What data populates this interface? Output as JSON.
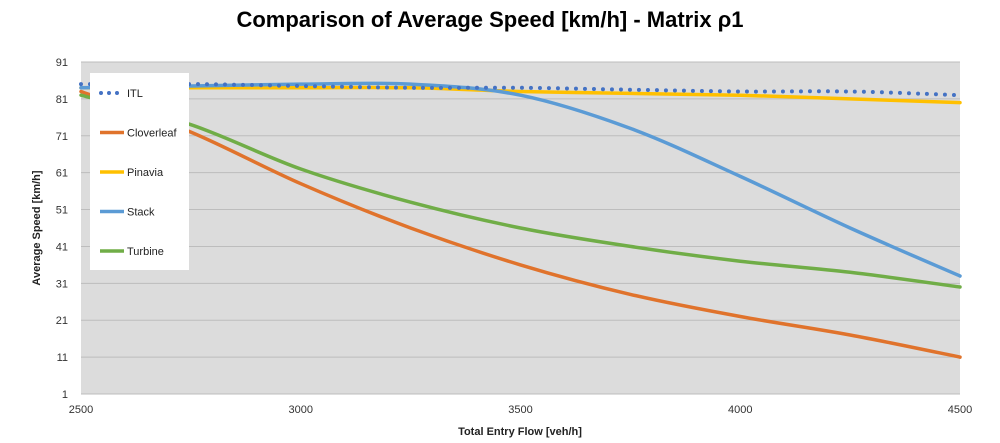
{
  "chart_data": {
    "type": "line",
    "title": "Comparison of Average Speed [km/h] - Matrix ρ1",
    "xlabel": "Total Entry Flow [veh/h]",
    "ylabel": "Average Speed [km/h]",
    "xlim": [
      2500,
      4500
    ],
    "ylim": [
      1,
      91
    ],
    "x_ticks": [
      2500,
      3000,
      3500,
      4000,
      4500
    ],
    "y_ticks": [
      1,
      11,
      21,
      31,
      41,
      51,
      61,
      71,
      81,
      91
    ],
    "grid": "horizontal",
    "legend_position": "top-left",
    "x": [
      2500,
      2750,
      3000,
      3250,
      3500,
      3750,
      4000,
      4250,
      4500
    ],
    "series": [
      {
        "name": "ITL",
        "color": "#4472C4",
        "style": "dotted",
        "values": [
          85,
          85,
          84.5,
          84,
          84,
          83.5,
          83,
          83,
          82
        ]
      },
      {
        "name": "Cloverleaf",
        "color": "#E0732C",
        "style": "solid",
        "values": [
          83,
          72,
          58,
          46,
          36,
          28,
          22,
          17,
          11
        ]
      },
      {
        "name": "Pinavia",
        "color": "#FFC000",
        "style": "solid",
        "values": [
          84,
          84,
          84,
          84,
          83,
          82.5,
          82,
          81,
          80
        ]
      },
      {
        "name": "Stack",
        "color": "#5B9BD5",
        "style": "solid",
        "values": [
          84,
          84.5,
          85,
          85,
          82,
          73,
          60,
          46,
          33
        ]
      },
      {
        "name": "Turbine",
        "color": "#70AD47",
        "style": "solid",
        "values": [
          82,
          74,
          62,
          53,
          46,
          41,
          37,
          34,
          30
        ]
      }
    ]
  }
}
